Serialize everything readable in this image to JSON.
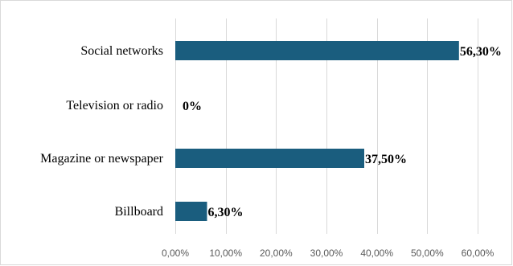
{
  "chart_data": {
    "type": "bar",
    "orientation": "horizontal",
    "categories": [
      "Social networks",
      "Television or radio",
      "Magazine or newspaper",
      "Billboard"
    ],
    "values": [
      56.3,
      0,
      37.5,
      6.3
    ],
    "data_labels": [
      "56,30%",
      "0%",
      "37,50%",
      "6,30%"
    ],
    "x_ticks": [
      "0,00%",
      "10,00%",
      "20,00%",
      "30,00%",
      "40,00%",
      "50,00%",
      "60,00%"
    ],
    "xlim": [
      0,
      60
    ],
    "grid": true,
    "legend": "none",
    "bar_color": "#1a5d7e",
    "title": "",
    "xlabel": "",
    "ylabel": ""
  }
}
